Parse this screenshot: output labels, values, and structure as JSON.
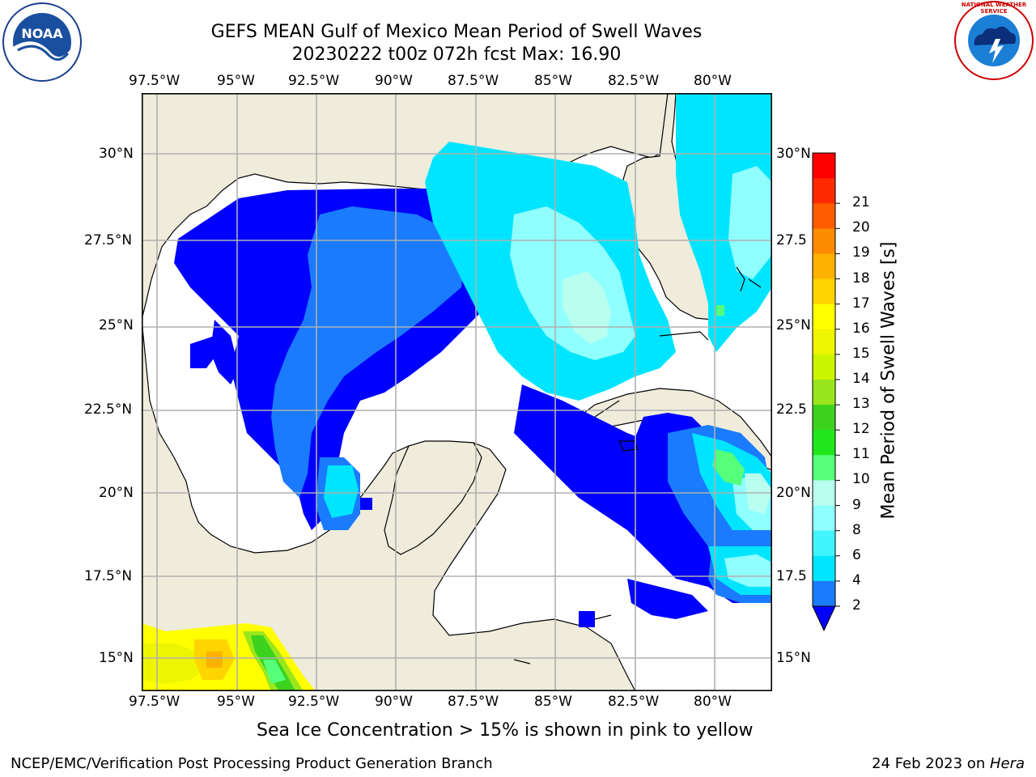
{
  "title": {
    "line1": "GEFS MEAN Gulf of Mexico Mean Period of Swell Waves",
    "line2": "20230222 t00z 072h fcst   Max: 16.90"
  },
  "map": {
    "lon_labels": [
      "97.5°W",
      "95°W",
      "92.5°W",
      "90°W",
      "87.5°W",
      "85°W",
      "82.5°W",
      "80°W"
    ],
    "lat_labels_left": [
      "30°N",
      "27.5°N",
      "25°N",
      "22.5°N",
      "20°N",
      "17.5°N",
      "15°N"
    ],
    "lat_labels_right": [
      "30°N",
      "27.5",
      "25°N",
      "22.5",
      "20°N",
      "17.5",
      "15°N"
    ],
    "land_color": "#efecdc",
    "ocean_color": "#ffffff"
  },
  "colorbar": {
    "label": "Mean Period of Swell Waves [s]",
    "ticks": [
      "2",
      "4",
      "6",
      "8",
      "9",
      "10",
      "11",
      "12",
      "13",
      "14",
      "15",
      "16",
      "17",
      "18",
      "19",
      "20",
      "21"
    ],
    "colors": [
      "#1a7bff",
      "#00e5ff",
      "#41f5ff",
      "#90ffff",
      "#b8fff0",
      "#55ff7a",
      "#20e61c",
      "#3cd21e",
      "#9ae61c",
      "#ccf500",
      "#eef500",
      "#ffff00",
      "#ffd400",
      "#ffb100",
      "#ff8b00",
      "#ff5c00",
      "#ff2a00",
      "#ff0000"
    ],
    "under_color": "#0000ff"
  },
  "subtitle": "Sea Ice Concentration > 15% is shown in pink to yellow",
  "footer": {
    "left": "NCEP/EMC/Verification Post Processing Product Generation Branch",
    "right_prefix": "24 Feb 2023 on ",
    "right_host": "Hera"
  },
  "logos": {
    "noaa": "NOAA",
    "nws": "NATIONAL WEATHER SERVICE"
  }
}
